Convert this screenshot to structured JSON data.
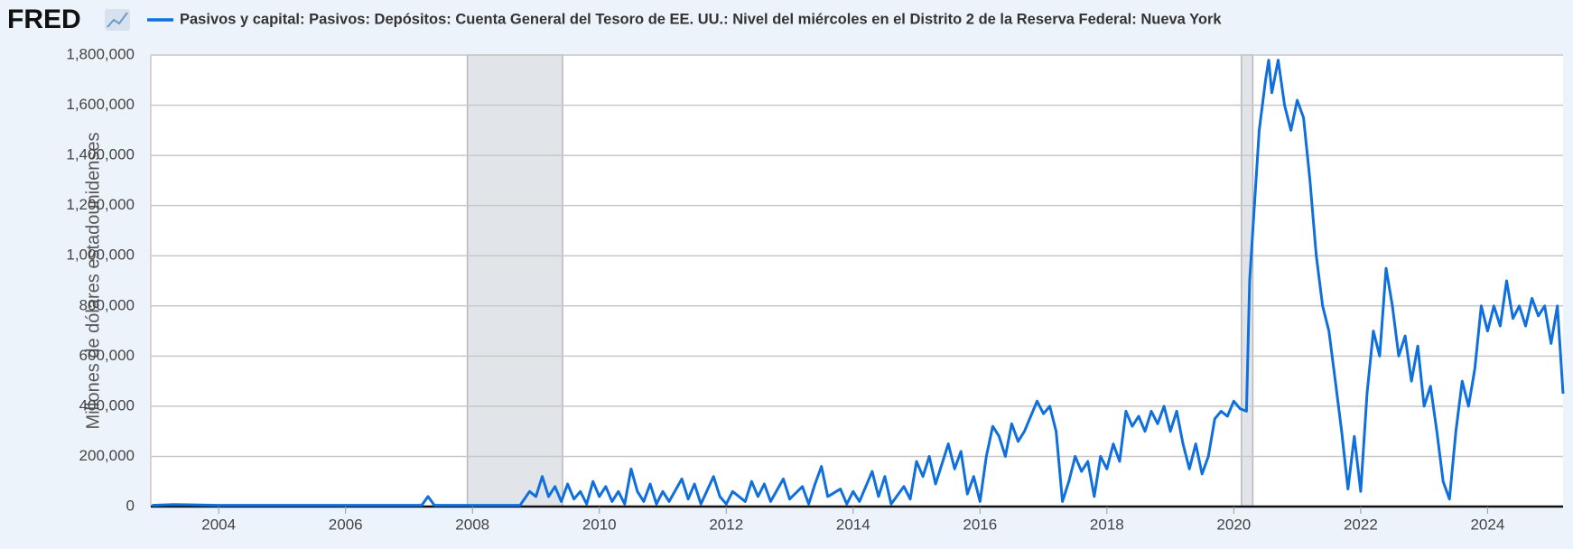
{
  "logo": "FRED",
  "chart_data": {
    "type": "line",
    "y_label": "Millones de dólares estadounidenses",
    "xlim": [
      2002.93,
      2025.19
    ],
    "xticks": [
      2004,
      2006,
      2008,
      2010,
      2012,
      2014,
      2016,
      2018,
      2020,
      2022,
      2024
    ],
    "ylim": [
      0,
      1800000
    ],
    "yticks": [
      0,
      {
        "value": 200000,
        "label": "200,000"
      },
      {
        "value": 400000,
        "label": "400,000"
      },
      {
        "value": 600000,
        "label": "600,000"
      },
      {
        "value": 800000,
        "label": "800,000"
      },
      {
        "value": 1000000,
        "label": "1,000,000"
      },
      {
        "value": 1200000,
        "label": "1,200,000"
      },
      {
        "value": 1400000,
        "label": "1,400,000"
      },
      {
        "value": 1600000,
        "label": "1,600,000"
      },
      {
        "value": 1800000,
        "label": "1,800,000"
      }
    ],
    "grid": true,
    "recessions": [
      [
        2007.92,
        2009.42
      ],
      [
        2020.12,
        2020.3
      ]
    ],
    "recession_color": "#e1e5ea",
    "series": [
      {
        "name": "Pasivos y capital: Pasivos: Depósitos: Cuenta General del Tesoro de EE. UU.: Nivel del miércoles en el Distrito 2 de la Reserva Federal: Nueva York",
        "color": "#0f6fdc",
        "x": [
          2002.95,
          2003.3,
          2004,
          2005,
          2006,
          2007.2,
          2007.3,
          2007.4,
          2008,
          2008.75,
          2008.9,
          2009.0,
          2009.1,
          2009.2,
          2009.3,
          2009.4,
          2009.5,
          2009.6,
          2009.7,
          2009.8,
          2009.9,
          2010.0,
          2010.1,
          2010.2,
          2010.3,
          2010.4,
          2010.5,
          2010.6,
          2010.7,
          2010.8,
          2010.9,
          2011.0,
          2011.1,
          2011.3,
          2011.4,
          2011.5,
          2011.6,
          2011.8,
          2011.9,
          2012.0,
          2012.1,
          2012.3,
          2012.4,
          2012.5,
          2012.6,
          2012.7,
          2012.9,
          2013.0,
          2013.2,
          2013.3,
          2013.4,
          2013.5,
          2013.6,
          2013.8,
          2013.9,
          2014.0,
          2014.1,
          2014.3,
          2014.4,
          2014.5,
          2014.6,
          2014.8,
          2014.9,
          2015.0,
          2015.1,
          2015.2,
          2015.3,
          2015.5,
          2015.6,
          2015.7,
          2015.8,
          2015.9,
          2016.0,
          2016.1,
          2016.2,
          2016.3,
          2016.4,
          2016.5,
          2016.6,
          2016.7,
          2016.8,
          2016.9,
          2017.0,
          2017.1,
          2017.2,
          2017.3,
          2017.4,
          2017.5,
          2017.6,
          2017.7,
          2017.8,
          2017.9,
          2018.0,
          2018.1,
          2018.2,
          2018.3,
          2018.4,
          2018.5,
          2018.6,
          2018.7,
          2018.8,
          2018.9,
          2019.0,
          2019.1,
          2019.2,
          2019.3,
          2019.4,
          2019.5,
          2019.6,
          2019.7,
          2019.8,
          2019.9,
          2020.0,
          2020.1,
          2020.2,
          2020.25,
          2020.3,
          2020.4,
          2020.5,
          2020.55,
          2020.6,
          2020.7,
          2020.8,
          2020.9,
          2021.0,
          2021.1,
          2021.2,
          2021.3,
          2021.4,
          2021.5,
          2021.6,
          2021.7,
          2021.8,
          2021.9,
          2022.0,
          2022.1,
          2022.2,
          2022.3,
          2022.4,
          2022.5,
          2022.6,
          2022.7,
          2022.8,
          2022.9,
          2023.0,
          2023.1,
          2023.2,
          2023.3,
          2023.4,
          2023.5,
          2023.6,
          2023.7,
          2023.8,
          2023.9,
          2024.0,
          2024.1,
          2024.2,
          2024.3,
          2024.4,
          2024.5,
          2024.6,
          2024.7,
          2024.8,
          2024.9,
          2025.0,
          2025.1,
          2025.19
        ],
        "values": [
          5000,
          8000,
          5000,
          5000,
          5000,
          5000,
          40000,
          5000,
          5000,
          5000,
          60000,
          40000,
          120000,
          40000,
          80000,
          20000,
          90000,
          30000,
          60000,
          10000,
          100000,
          40000,
          80000,
          20000,
          60000,
          10000,
          150000,
          60000,
          20000,
          90000,
          10000,
          60000,
          20000,
          110000,
          30000,
          90000,
          10000,
          120000,
          40000,
          10000,
          60000,
          20000,
          100000,
          40000,
          90000,
          20000,
          110000,
          30000,
          80000,
          10000,
          90000,
          160000,
          40000,
          70000,
          10000,
          60000,
          20000,
          140000,
          40000,
          120000,
          10000,
          80000,
          30000,
          180000,
          120000,
          200000,
          90000,
          250000,
          150000,
          220000,
          50000,
          120000,
          20000,
          200000,
          320000,
          280000,
          200000,
          330000,
          260000,
          300000,
          360000,
          420000,
          370000,
          400000,
          300000,
          20000,
          100000,
          200000,
          140000,
          180000,
          40000,
          200000,
          150000,
          250000,
          180000,
          380000,
          320000,
          360000,
          300000,
          380000,
          330000,
          400000,
          300000,
          380000,
          250000,
          150000,
          250000,
          130000,
          200000,
          350000,
          380000,
          360000,
          420000,
          390000,
          380000,
          900000,
          1100000,
          1500000,
          1700000,
          1780000,
          1650000,
          1780000,
          1600000,
          1500000,
          1620000,
          1550000,
          1300000,
          1000000,
          800000,
          700000,
          500000,
          300000,
          70000,
          280000,
          60000,
          450000,
          700000,
          600000,
          950000,
          800000,
          600000,
          680000,
          500000,
          640000,
          400000,
          480000,
          300000,
          100000,
          30000,
          300000,
          500000,
          400000,
          550000,
          800000,
          700000,
          800000,
          720000,
          900000,
          750000,
          800000,
          720000,
          830000,
          760000,
          800000,
          650000,
          800000,
          450000
        ]
      }
    ]
  }
}
